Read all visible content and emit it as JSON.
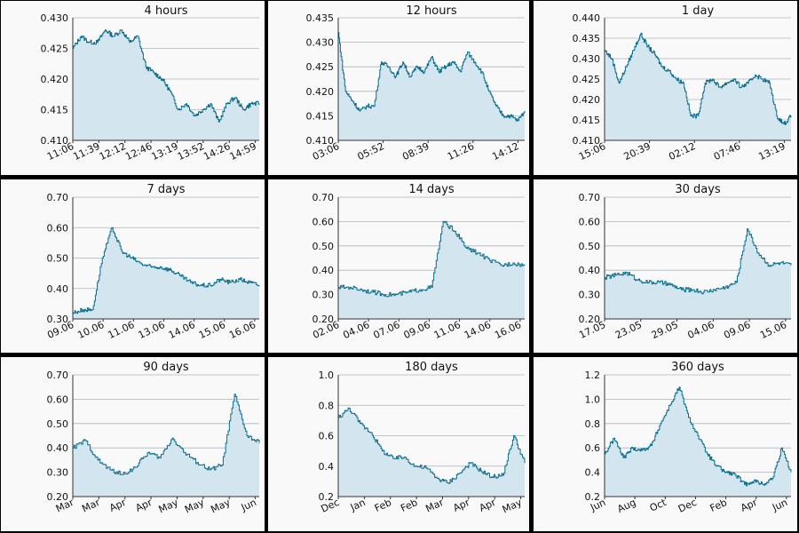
{
  "colors": {
    "line": "#0a6e8c",
    "fill": "#d3e6ef",
    "grid": "#aab4bc",
    "panel": "#f9f9f9",
    "border": "#000000"
  },
  "chart_data": [
    {
      "type": "area",
      "title": "4 hours",
      "ylim": [
        0.41,
        0.43
      ],
      "yticks": [
        "0.410",
        "0.415",
        "0.420",
        "0.425",
        "0.430"
      ],
      "xticks": [
        "11:06",
        "11:39",
        "12:12",
        "12:46",
        "13:19",
        "13:52",
        "14:26",
        "14:59"
      ],
      "grid": true,
      "x": [
        "11:06",
        "11:12",
        "11:26",
        "11:39",
        "11:56",
        "12:05",
        "12:20",
        "12:30",
        "12:40",
        "12:46",
        "12:52",
        "13:00",
        "13:08",
        "13:19",
        "13:30",
        "13:40",
        "13:52",
        "14:05",
        "14:20",
        "14:30",
        "14:40",
        "14:50",
        "14:59",
        "15:10"
      ],
      "values": [
        0.425,
        0.427,
        0.426,
        0.426,
        0.428,
        0.427,
        0.428,
        0.426,
        0.427,
        0.422,
        0.421,
        0.42,
        0.418,
        0.415,
        0.416,
        0.414,
        0.415,
        0.416,
        0.413,
        0.416,
        0.417,
        0.415,
        0.416,
        0.416
      ]
    },
    {
      "type": "area",
      "title": "12 hours",
      "ylim": [
        0.41,
        0.435
      ],
      "yticks": [
        "0.410",
        "0.415",
        "0.420",
        "0.425",
        "0.430",
        "0.435"
      ],
      "xticks": [
        "03:06",
        "05:52",
        "08:39",
        "11:26",
        "14:12"
      ],
      "grid": true,
      "x": [
        "03:06",
        "03:15",
        "03:40",
        "04:10",
        "04:30",
        "05:10",
        "05:20",
        "05:52",
        "06:20",
        "07:00",
        "07:40",
        "08:10",
        "08:39",
        "09:10",
        "09:40",
        "10:10",
        "10:40",
        "11:10",
        "11:26",
        "11:50",
        "12:20",
        "12:50",
        "13:20",
        "13:50",
        "14:12",
        "14:40",
        "15:10"
      ],
      "values": [
        0.432,
        0.42,
        0.418,
        0.416,
        0.417,
        0.417,
        0.426,
        0.425,
        0.423,
        0.426,
        0.423,
        0.425,
        0.424,
        0.427,
        0.424,
        0.425,
        0.426,
        0.424,
        0.428,
        0.426,
        0.424,
        0.42,
        0.417,
        0.415,
        0.415,
        0.414,
        0.416
      ]
    },
    {
      "type": "area",
      "title": "1 day",
      "ylim": [
        0.41,
        0.44
      ],
      "yticks": [
        "0.410",
        "0.415",
        "0.420",
        "0.425",
        "0.430",
        "0.435",
        "0.440"
      ],
      "xticks": [
        "15:06",
        "20:39",
        "02:12",
        "07:46",
        "13:19"
      ],
      "grid": true,
      "x": [
        "15:06",
        "16:00",
        "17:30",
        "19:00",
        "20:00",
        "20:39",
        "21:30",
        "22:30",
        "23:30",
        "00:30",
        "01:30",
        "02:12",
        "02:50",
        "03:40",
        "04:30",
        "05:30",
        "06:30",
        "07:46",
        "08:40",
        "09:40",
        "10:40",
        "11:30",
        "12:20",
        "13:19",
        "14:00",
        "14:40",
        "15:10"
      ],
      "values": [
        0.432,
        0.43,
        0.424,
        0.428,
        0.432,
        0.436,
        0.433,
        0.431,
        0.428,
        0.427,
        0.425,
        0.424,
        0.416,
        0.416,
        0.424,
        0.425,
        0.423,
        0.424,
        0.425,
        0.423,
        0.424,
        0.426,
        0.425,
        0.424,
        0.416,
        0.414,
        0.416
      ]
    },
    {
      "type": "area",
      "title": "7 days",
      "ylim": [
        0.3,
        0.7
      ],
      "yticks": [
        "0.30",
        "0.40",
        "0.50",
        "0.60",
        "0.70"
      ],
      "xticks": [
        "09.06",
        "10.06",
        "11.06",
        "13.06",
        "14.06",
        "15.06",
        "16.06"
      ],
      "grid": true,
      "x": [
        "09.06 12:00",
        "09.06 18:00",
        "10.06 00:00",
        "10.06 02:00",
        "10.06 06:00",
        "10.06 12:00",
        "10.06 18:00",
        "11.06 00:00",
        "11.06 12:00",
        "12.06 00:00",
        "12.06 12:00",
        "13.06 00:00",
        "13.06 12:00",
        "14.06 00:00",
        "14.06 12:00",
        "15.06 00:00",
        "15.06 12:00",
        "16.06 00:00",
        "16.06 12:00",
        "16.06 20:00"
      ],
      "values": [
        0.32,
        0.33,
        0.33,
        0.5,
        0.6,
        0.52,
        0.5,
        0.48,
        0.47,
        0.47,
        0.46,
        0.44,
        0.42,
        0.41,
        0.41,
        0.43,
        0.42,
        0.43,
        0.42,
        0.41
      ]
    },
    {
      "type": "area",
      "title": "14 days",
      "ylim": [
        0.2,
        0.7
      ],
      "yticks": [
        "0.20",
        "0.30",
        "0.40",
        "0.50",
        "0.60",
        "0.70"
      ],
      "xticks": [
        "02.06",
        "04.06",
        "07.06",
        "09.06",
        "11.06",
        "14.06",
        "16.06"
      ],
      "grid": true,
      "x": [
        "02.06",
        "03.06",
        "04.06",
        "05.06",
        "06.06",
        "07.06",
        "08.06",
        "09.06",
        "10.06",
        "10.06 06:00",
        "10.06 18:00",
        "11.06",
        "12.06",
        "13.06",
        "14.06",
        "15.06",
        "16.06"
      ],
      "values": [
        0.33,
        0.33,
        0.32,
        0.31,
        0.3,
        0.3,
        0.31,
        0.32,
        0.33,
        0.6,
        0.56,
        0.49,
        0.47,
        0.44,
        0.42,
        0.43,
        0.42
      ]
    },
    {
      "type": "area",
      "title": "30 days",
      "ylim": [
        0.2,
        0.7
      ],
      "yticks": [
        "0.20",
        "0.30",
        "0.40",
        "0.50",
        "0.60",
        "0.70"
      ],
      "xticks": [
        "17.05",
        "23.05",
        "29.05",
        "04.06",
        "09.06",
        "15.06"
      ],
      "grid": true,
      "x": [
        "17.05",
        "19.05",
        "21.05",
        "23.05",
        "25.05",
        "27.05",
        "29.05",
        "31.05",
        "02.06",
        "04.06",
        "06.06",
        "08.06",
        "10.06",
        "10.06 12:00",
        "12.06",
        "14.06",
        "16.06",
        "17.06"
      ],
      "values": [
        0.37,
        0.38,
        0.39,
        0.36,
        0.35,
        0.35,
        0.34,
        0.32,
        0.32,
        0.31,
        0.32,
        0.33,
        0.35,
        0.57,
        0.47,
        0.42,
        0.43,
        0.42
      ]
    },
    {
      "type": "area",
      "title": "90 days",
      "ylim": [
        0.2,
        0.7
      ],
      "yticks": [
        "0.20",
        "0.30",
        "0.40",
        "0.50",
        "0.60",
        "0.70"
      ],
      "xticks": [
        "Mar",
        "Mar",
        "Apr",
        "Apr",
        "May",
        "May",
        "May",
        "Jun"
      ],
      "grid": true,
      "x": [
        "Mar 18",
        "Mar 25",
        "Apr 01",
        "Apr 08",
        "Apr 15",
        "Apr 22",
        "Apr 29",
        "May 06",
        "May 13",
        "May 20",
        "May 27",
        "Jun 03",
        "Jun 08",
        "Jun 10",
        "Jun 12",
        "Jun 16"
      ],
      "values": [
        0.4,
        0.43,
        0.35,
        0.31,
        0.29,
        0.32,
        0.38,
        0.36,
        0.44,
        0.38,
        0.34,
        0.31,
        0.33,
        0.62,
        0.45,
        0.42
      ]
    },
    {
      "type": "area",
      "title": "180 days",
      "ylim": [
        0.2,
        1.0
      ],
      "yticks": [
        "0.2",
        "0.4",
        "0.6",
        "0.8",
        "1.0"
      ],
      "xticks": [
        "Dec",
        "Jan",
        "Feb",
        "Feb",
        "Mar",
        "Apr",
        "Apr",
        "May"
      ],
      "grid": true,
      "x": [
        "Dec 18",
        "Dec 28",
        "Jan 10",
        "Jan 22",
        "Feb 03",
        "Feb 15",
        "Feb 27",
        "Mar 10",
        "Mar 22",
        "Apr 03",
        "Apr 15",
        "Apr 27",
        "May 09",
        "May 21",
        "Jun 02",
        "Jun 08",
        "Jun 10",
        "Jun 16"
      ],
      "values": [
        0.72,
        0.78,
        0.68,
        0.62,
        0.5,
        0.45,
        0.46,
        0.4,
        0.39,
        0.32,
        0.29,
        0.35,
        0.42,
        0.37,
        0.33,
        0.34,
        0.6,
        0.42
      ]
    },
    {
      "type": "area",
      "title": "360 days",
      "ylim": [
        0.2,
        1.2
      ],
      "yticks": [
        "0.2",
        "0.4",
        "0.6",
        "0.8",
        "1.0",
        "1.2"
      ],
      "xticks": [
        "Jun",
        "Aug",
        "Oct",
        "Dec",
        "Feb",
        "Apr",
        "Jun"
      ],
      "grid": true,
      "x": [
        "Jun 20",
        "Jul 10",
        "Jul 30",
        "Aug 20",
        "Sep 10",
        "Oct 01",
        "Oct 20",
        "Nov 10",
        "Nov 30",
        "Dec 20",
        "Jan 10",
        "Jan 30",
        "Feb 20",
        "Mar 10",
        "Apr 01",
        "Apr 20",
        "May 10",
        "May 30",
        "Jun 08",
        "Jun 10",
        "Jun 16"
      ],
      "values": [
        0.55,
        0.68,
        0.52,
        0.6,
        0.58,
        0.62,
        0.8,
        0.95,
        1.1,
        0.85,
        0.7,
        0.55,
        0.45,
        0.4,
        0.38,
        0.3,
        0.33,
        0.3,
        0.35,
        0.6,
        0.4
      ]
    }
  ]
}
